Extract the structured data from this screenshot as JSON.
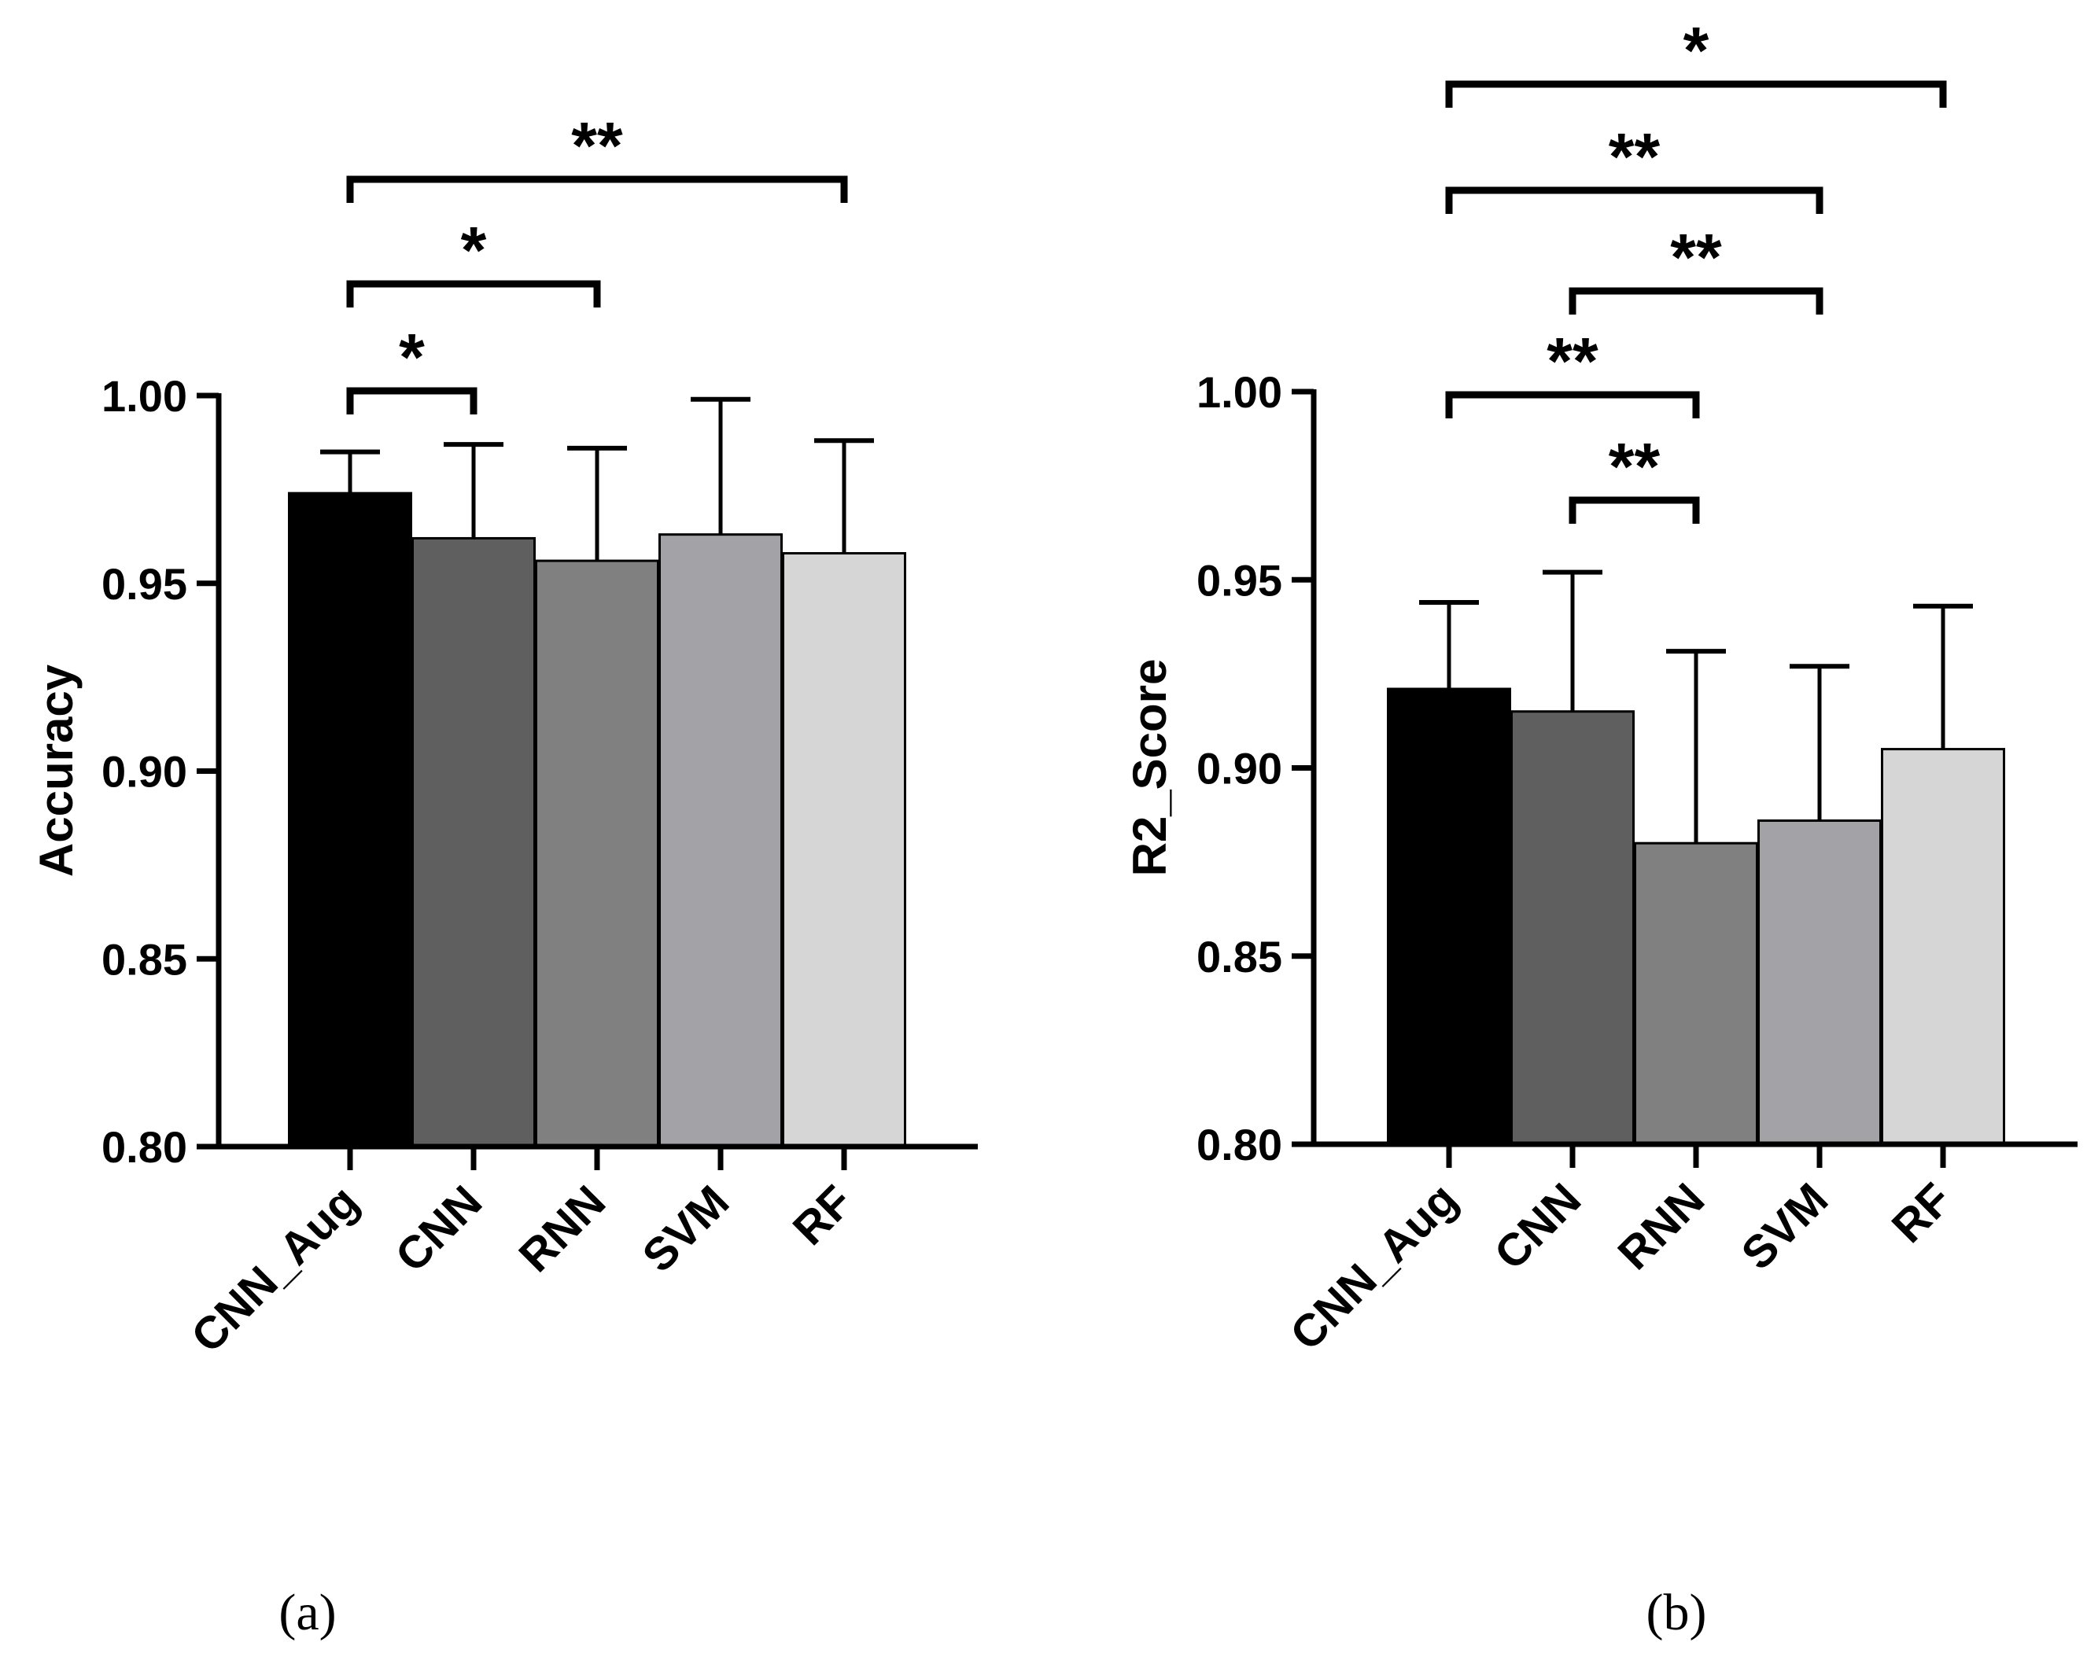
{
  "chart_data": [
    {
      "panel": "(a)",
      "type": "bar",
      "categories": [
        "CNN_Aug",
        "CNN",
        "RNN",
        "SVM",
        "RF"
      ],
      "values": [
        0.974,
        0.962,
        0.956,
        0.963,
        0.958
      ],
      "error": [
        0.011,
        0.025,
        0.03,
        0.036,
        0.03
      ],
      "colors": [
        "#000000",
        "#5f5f5f",
        "#808080",
        "#a3a3a7",
        "#d6d6d6"
      ],
      "ylabel": "Accuracy",
      "xlabel": "",
      "ylim": [
        0.8,
        1.0
      ],
      "yticks": [
        "0.80",
        "0.85",
        "0.90",
        "0.95",
        "1.00"
      ],
      "significance": [
        {
          "from": 0,
          "to": 1,
          "label": "*"
        },
        {
          "from": 0,
          "to": 2,
          "label": "*"
        },
        {
          "from": 0,
          "to": 4,
          "label": "**"
        }
      ]
    },
    {
      "panel": "(b)",
      "type": "bar",
      "categories": [
        "CNN_Aug",
        "CNN",
        "RNN",
        "SVM",
        "RF"
      ],
      "values": [
        0.921,
        0.915,
        0.88,
        0.886,
        0.905
      ],
      "error": [
        0.023,
        0.037,
        0.051,
        0.041,
        0.038
      ],
      "colors": [
        "#000000",
        "#5f5f5f",
        "#808080",
        "#a3a3a7",
        "#d6d6d6"
      ],
      "ylabel": "R2_Score",
      "xlabel": "",
      "ylim": [
        0.8,
        1.0
      ],
      "yticks": [
        "0.80",
        "0.85",
        "0.90",
        "0.95",
        "1.00"
      ],
      "significance": [
        {
          "from": 1,
          "to": 2,
          "label": "**"
        },
        {
          "from": 0,
          "to": 2,
          "label": "**"
        },
        {
          "from": 1,
          "to": 3,
          "label": "**"
        },
        {
          "from": 0,
          "to": 3,
          "label": "**"
        },
        {
          "from": 0,
          "to": 4,
          "label": "*"
        }
      ]
    }
  ]
}
